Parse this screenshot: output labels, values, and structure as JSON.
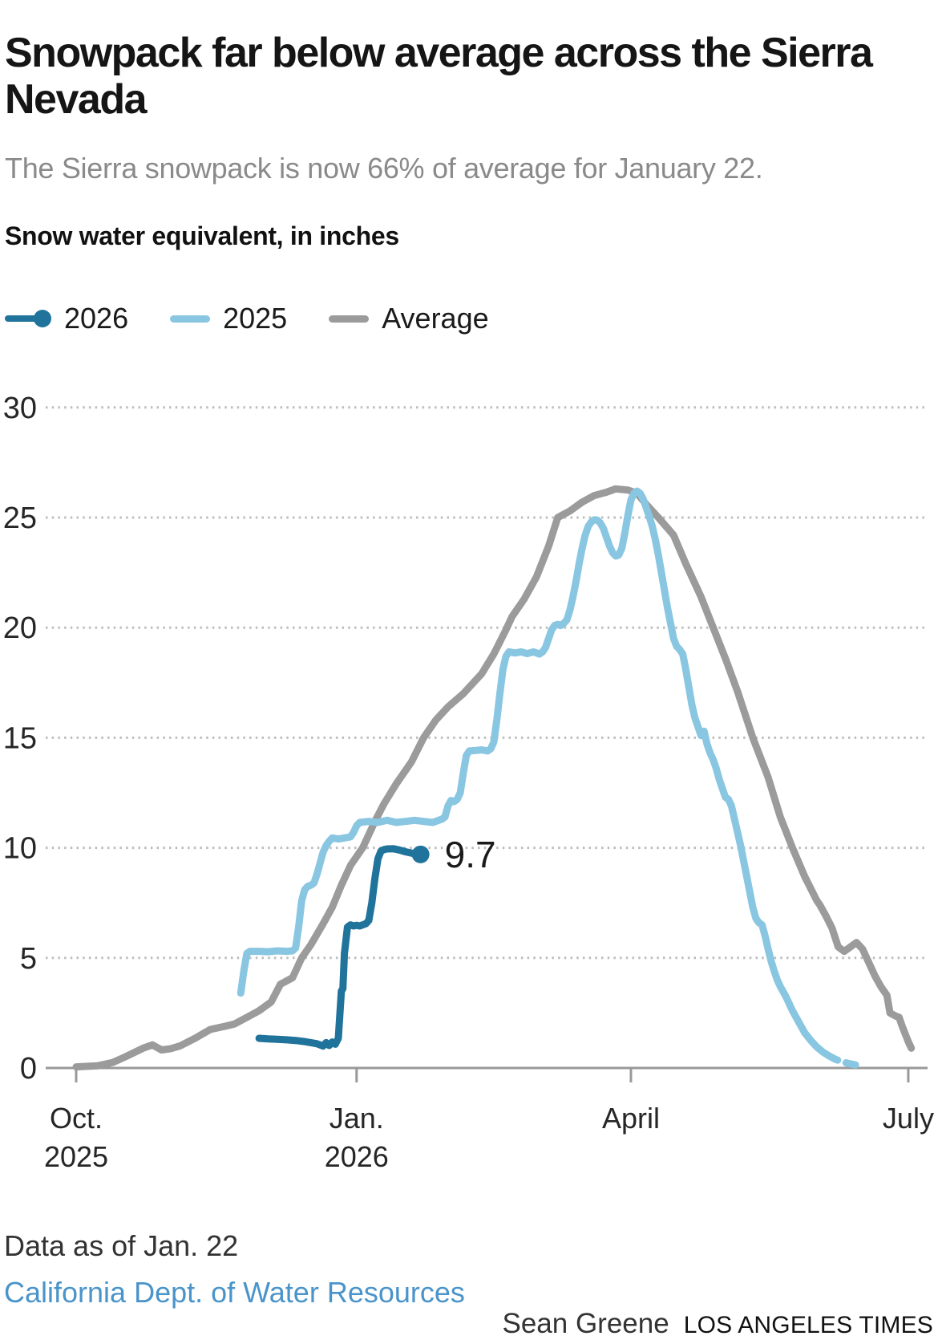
{
  "header": {
    "title": "Snowpack far below average across the Sierra Nevada",
    "subtitle": "The Sierra snowpack is now 66% of average for January 22."
  },
  "chart_data": {
    "type": "line",
    "title": "Snow water equivalent, in inches",
    "legend_position": "top",
    "x_axis": {
      "unit": "days since Oct. 1",
      "range": [
        0,
        276
      ],
      "ticks": [
        {
          "day": 0,
          "label": "Oct.",
          "sublabel": "2025"
        },
        {
          "day": 92,
          "label": "Jan.",
          "sublabel": "2026"
        },
        {
          "day": 182,
          "label": "April"
        },
        {
          "day": 273,
          "label": "July"
        }
      ]
    },
    "y_axis": {
      "range": [
        0,
        30
      ],
      "ticks": [
        0,
        5,
        10,
        15,
        20,
        25,
        30
      ],
      "gridlines": "dotted"
    },
    "annotation": {
      "label": "9.7",
      "day": 113,
      "value": 9.7
    },
    "series": [
      {
        "name": "2026",
        "color": "#20739b",
        "end_dot": true,
        "points": [
          [
            60,
            1.35
          ],
          [
            63,
            1.32
          ],
          [
            66,
            1.3
          ],
          [
            69,
            1.28
          ],
          [
            72,
            1.25
          ],
          [
            75,
            1.2
          ],
          [
            77,
            1.15
          ],
          [
            79,
            1.1
          ],
          [
            81,
            1.0
          ],
          [
            82,
            1.15
          ],
          [
            83,
            1.02
          ],
          [
            84,
            1.18
          ],
          [
            85,
            1.08
          ],
          [
            86,
            1.35
          ],
          [
            87,
            3.5
          ],
          [
            87.5,
            3.6
          ],
          [
            88,
            5.2
          ],
          [
            89,
            6.4
          ],
          [
            90,
            6.5
          ],
          [
            91,
            6.45
          ],
          [
            92,
            6.48
          ],
          [
            93,
            6.45
          ],
          [
            94,
            6.5
          ],
          [
            95,
            6.55
          ],
          [
            96,
            6.7
          ],
          [
            97,
            7.5
          ],
          [
            98,
            8.6
          ],
          [
            99,
            9.5
          ],
          [
            100,
            9.85
          ],
          [
            101,
            9.92
          ],
          [
            102,
            9.95
          ],
          [
            104,
            9.96
          ],
          [
            106,
            9.9
          ],
          [
            108,
            9.82
          ],
          [
            110,
            9.76
          ],
          [
            112,
            9.71
          ],
          [
            113,
            9.7
          ]
        ]
      },
      {
        "name": "2025",
        "color": "#89c6e1",
        "dashed_tail_from_day": 247,
        "points": [
          [
            54,
            3.4
          ],
          [
            55,
            4.4
          ],
          [
            56,
            5.2
          ],
          [
            57,
            5.3
          ],
          [
            60,
            5.3
          ],
          [
            63,
            5.28
          ],
          [
            66,
            5.32
          ],
          [
            69,
            5.3
          ],
          [
            71,
            5.32
          ],
          [
            72,
            5.45
          ],
          [
            73,
            6.4
          ],
          [
            74,
            7.6
          ],
          [
            75,
            8.1
          ],
          [
            76,
            8.25
          ],
          [
            77,
            8.3
          ],
          [
            78,
            8.4
          ],
          [
            79,
            8.8
          ],
          [
            80,
            9.3
          ],
          [
            81,
            9.8
          ],
          [
            82,
            10.1
          ],
          [
            83,
            10.3
          ],
          [
            84,
            10.45
          ],
          [
            86,
            10.4
          ],
          [
            88,
            10.45
          ],
          [
            90,
            10.5
          ],
          [
            91,
            10.7
          ],
          [
            92,
            11.0
          ],
          [
            93,
            11.15
          ],
          [
            96,
            11.2
          ],
          [
            99,
            11.15
          ],
          [
            102,
            11.25
          ],
          [
            105,
            11.15
          ],
          [
            108,
            11.2
          ],
          [
            111,
            11.25
          ],
          [
            114,
            11.2
          ],
          [
            117,
            11.15
          ],
          [
            120,
            11.3
          ],
          [
            121,
            11.4
          ],
          [
            122,
            11.9
          ],
          [
            123,
            12.15
          ],
          [
            124,
            12.1
          ],
          [
            125,
            12.2
          ],
          [
            126,
            12.5
          ],
          [
            127,
            13.4
          ],
          [
            128,
            14.2
          ],
          [
            129,
            14.4
          ],
          [
            131,
            14.42
          ],
          [
            133,
            14.45
          ],
          [
            135,
            14.4
          ],
          [
            136,
            14.5
          ],
          [
            137,
            14.8
          ],
          [
            138,
            15.8
          ],
          [
            139,
            17.0
          ],
          [
            140,
            18.1
          ],
          [
            141,
            18.7
          ],
          [
            142,
            18.9
          ],
          [
            144,
            18.85
          ],
          [
            146,
            18.9
          ],
          [
            148,
            18.82
          ],
          [
            150,
            18.9
          ],
          [
            152,
            18.8
          ],
          [
            153,
            18.9
          ],
          [
            154,
            19.1
          ],
          [
            155,
            19.5
          ],
          [
            156,
            19.9
          ],
          [
            157,
            20.1
          ],
          [
            158,
            20.15
          ],
          [
            159,
            20.1
          ],
          [
            160,
            20.2
          ],
          [
            161,
            20.35
          ],
          [
            162,
            20.8
          ],
          [
            163,
            21.4
          ],
          [
            164,
            22.1
          ],
          [
            165,
            22.9
          ],
          [
            166,
            23.6
          ],
          [
            167,
            24.2
          ],
          [
            168,
            24.6
          ],
          [
            169,
            24.8
          ],
          [
            170,
            24.9
          ],
          [
            171,
            24.88
          ],
          [
            172,
            24.75
          ],
          [
            173,
            24.5
          ],
          [
            174,
            24.1
          ],
          [
            175,
            23.7
          ],
          [
            176,
            23.4
          ],
          [
            177,
            23.25
          ],
          [
            178,
            23.3
          ],
          [
            179,
            23.6
          ],
          [
            180,
            24.3
          ],
          [
            181,
            25.1
          ],
          [
            182,
            25.8
          ],
          [
            183,
            26.1
          ],
          [
            184,
            26.2
          ],
          [
            185,
            26.1
          ],
          [
            186,
            25.85
          ],
          [
            187,
            25.45
          ],
          [
            188,
            25.05
          ],
          [
            189,
            24.6
          ],
          [
            190,
            24.0
          ],
          [
            191,
            23.3
          ],
          [
            192,
            22.5
          ],
          [
            193,
            21.7
          ],
          [
            194,
            20.9
          ],
          [
            195,
            20.2
          ],
          [
            196,
            19.5
          ],
          [
            197,
            19.15
          ],
          [
            198,
            19.0
          ],
          [
            199,
            18.8
          ],
          [
            200,
            18.1
          ],
          [
            201,
            17.3
          ],
          [
            202,
            16.5
          ],
          [
            203,
            15.9
          ],
          [
            204,
            15.5
          ],
          [
            205,
            15.1
          ],
          [
            206,
            15.3
          ],
          [
            207,
            14.7
          ],
          [
            208,
            14.3
          ],
          [
            209,
            14.0
          ],
          [
            210,
            13.6
          ],
          [
            211,
            13.1
          ],
          [
            212,
            12.7
          ],
          [
            213,
            12.3
          ],
          [
            214,
            12.2
          ],
          [
            215,
            11.9
          ],
          [
            216,
            11.3
          ],
          [
            217,
            10.7
          ],
          [
            218,
            10.1
          ],
          [
            219,
            9.4
          ],
          [
            220,
            8.7
          ],
          [
            221,
            8.0
          ],
          [
            222,
            7.3
          ],
          [
            223,
            6.8
          ],
          [
            224,
            6.6
          ],
          [
            225,
            6.5
          ],
          [
            226,
            6.0
          ],
          [
            227,
            5.4
          ],
          [
            228,
            4.85
          ],
          [
            229,
            4.4
          ],
          [
            230,
            4.0
          ],
          [
            231,
            3.7
          ],
          [
            233,
            3.2
          ],
          [
            235,
            2.6
          ],
          [
            237,
            2.1
          ],
          [
            239,
            1.6
          ],
          [
            241,
            1.25
          ],
          [
            243,
            0.95
          ],
          [
            245,
            0.72
          ],
          [
            247,
            0.55
          ],
          [
            249,
            0.4
          ],
          [
            251,
            0.3
          ],
          [
            253,
            0.22
          ],
          [
            255,
            0.16
          ],
          [
            256,
            0.13
          ]
        ]
      },
      {
        "name": "Average",
        "color": "#9b9b9b",
        "points": [
          [
            0,
            0.05
          ],
          [
            7,
            0.1
          ],
          [
            12,
            0.25
          ],
          [
            16,
            0.5
          ],
          [
            19,
            0.7
          ],
          [
            22,
            0.9
          ],
          [
            25,
            1.05
          ],
          [
            28,
            0.82
          ],
          [
            31,
            0.88
          ],
          [
            34,
            1.0
          ],
          [
            39,
            1.35
          ],
          [
            44,
            1.75
          ],
          [
            49,
            1.9
          ],
          [
            52,
            2.0
          ],
          [
            56,
            2.3
          ],
          [
            60,
            2.6
          ],
          [
            64,
            3.0
          ],
          [
            67,
            3.8
          ],
          [
            71,
            4.1
          ],
          [
            74,
            5.0
          ],
          [
            77,
            5.6
          ],
          [
            81,
            6.55
          ],
          [
            84,
            7.3
          ],
          [
            87,
            8.3
          ],
          [
            90,
            9.2
          ],
          [
            94,
            10.0
          ],
          [
            98,
            11.2
          ],
          [
            101,
            12.0
          ],
          [
            105,
            12.9
          ],
          [
            110,
            13.9
          ],
          [
            114,
            15.0
          ],
          [
            118,
            15.8
          ],
          [
            122,
            16.4
          ],
          [
            127,
            17.0
          ],
          [
            133,
            17.9
          ],
          [
            137,
            18.8
          ],
          [
            141,
            19.9
          ],
          [
            143,
            20.5
          ],
          [
            147,
            21.3
          ],
          [
            151,
            22.3
          ],
          [
            155,
            23.7
          ],
          [
            158,
            25.0
          ],
          [
            162,
            25.3
          ],
          [
            166,
            25.7
          ],
          [
            170,
            26.0
          ],
          [
            174,
            26.15
          ],
          [
            177,
            26.3
          ],
          [
            181,
            26.25
          ],
          [
            184,
            26.1
          ],
          [
            187,
            25.6
          ],
          [
            191,
            25.0
          ],
          [
            196,
            24.2
          ],
          [
            200,
            22.9
          ],
          [
            205,
            21.4
          ],
          [
            209,
            20.0
          ],
          [
            213,
            18.6
          ],
          [
            217,
            17.1
          ],
          [
            222,
            15.0
          ],
          [
            227,
            13.2
          ],
          [
            231,
            11.4
          ],
          [
            235,
            10.0
          ],
          [
            239,
            8.7
          ],
          [
            243,
            7.6
          ],
          [
            244,
            7.4
          ],
          [
            246,
            6.9
          ],
          [
            248,
            6.35
          ],
          [
            250,
            5.5
          ],
          [
            252,
            5.3
          ],
          [
            254,
            5.5
          ],
          [
            256,
            5.7
          ],
          [
            258,
            5.4
          ],
          [
            260,
            4.8
          ],
          [
            262,
            4.2
          ],
          [
            264,
            3.7
          ],
          [
            266,
            3.3
          ],
          [
            267,
            2.5
          ],
          [
            269,
            2.35
          ],
          [
            270,
            2.3
          ],
          [
            271,
            1.9
          ],
          [
            273,
            1.2
          ],
          [
            274,
            0.9
          ]
        ]
      }
    ]
  },
  "footer": {
    "note": "Data as of Jan. 22",
    "source": "California Dept. of Water Resources",
    "byline": "Sean Greene",
    "credit": "LOS ANGELES TIMES"
  },
  "colors": {
    "accent_2026": "#20739b",
    "accent_2025": "#89c6e1",
    "average_gray": "#9b9b9b",
    "gridline": "#bdbdbd",
    "axis": "#999999",
    "tick_label": "#262626",
    "subtitle": "#8a8a8a",
    "annotation": "#1a1a1a",
    "source_link": "#4a94ca"
  }
}
